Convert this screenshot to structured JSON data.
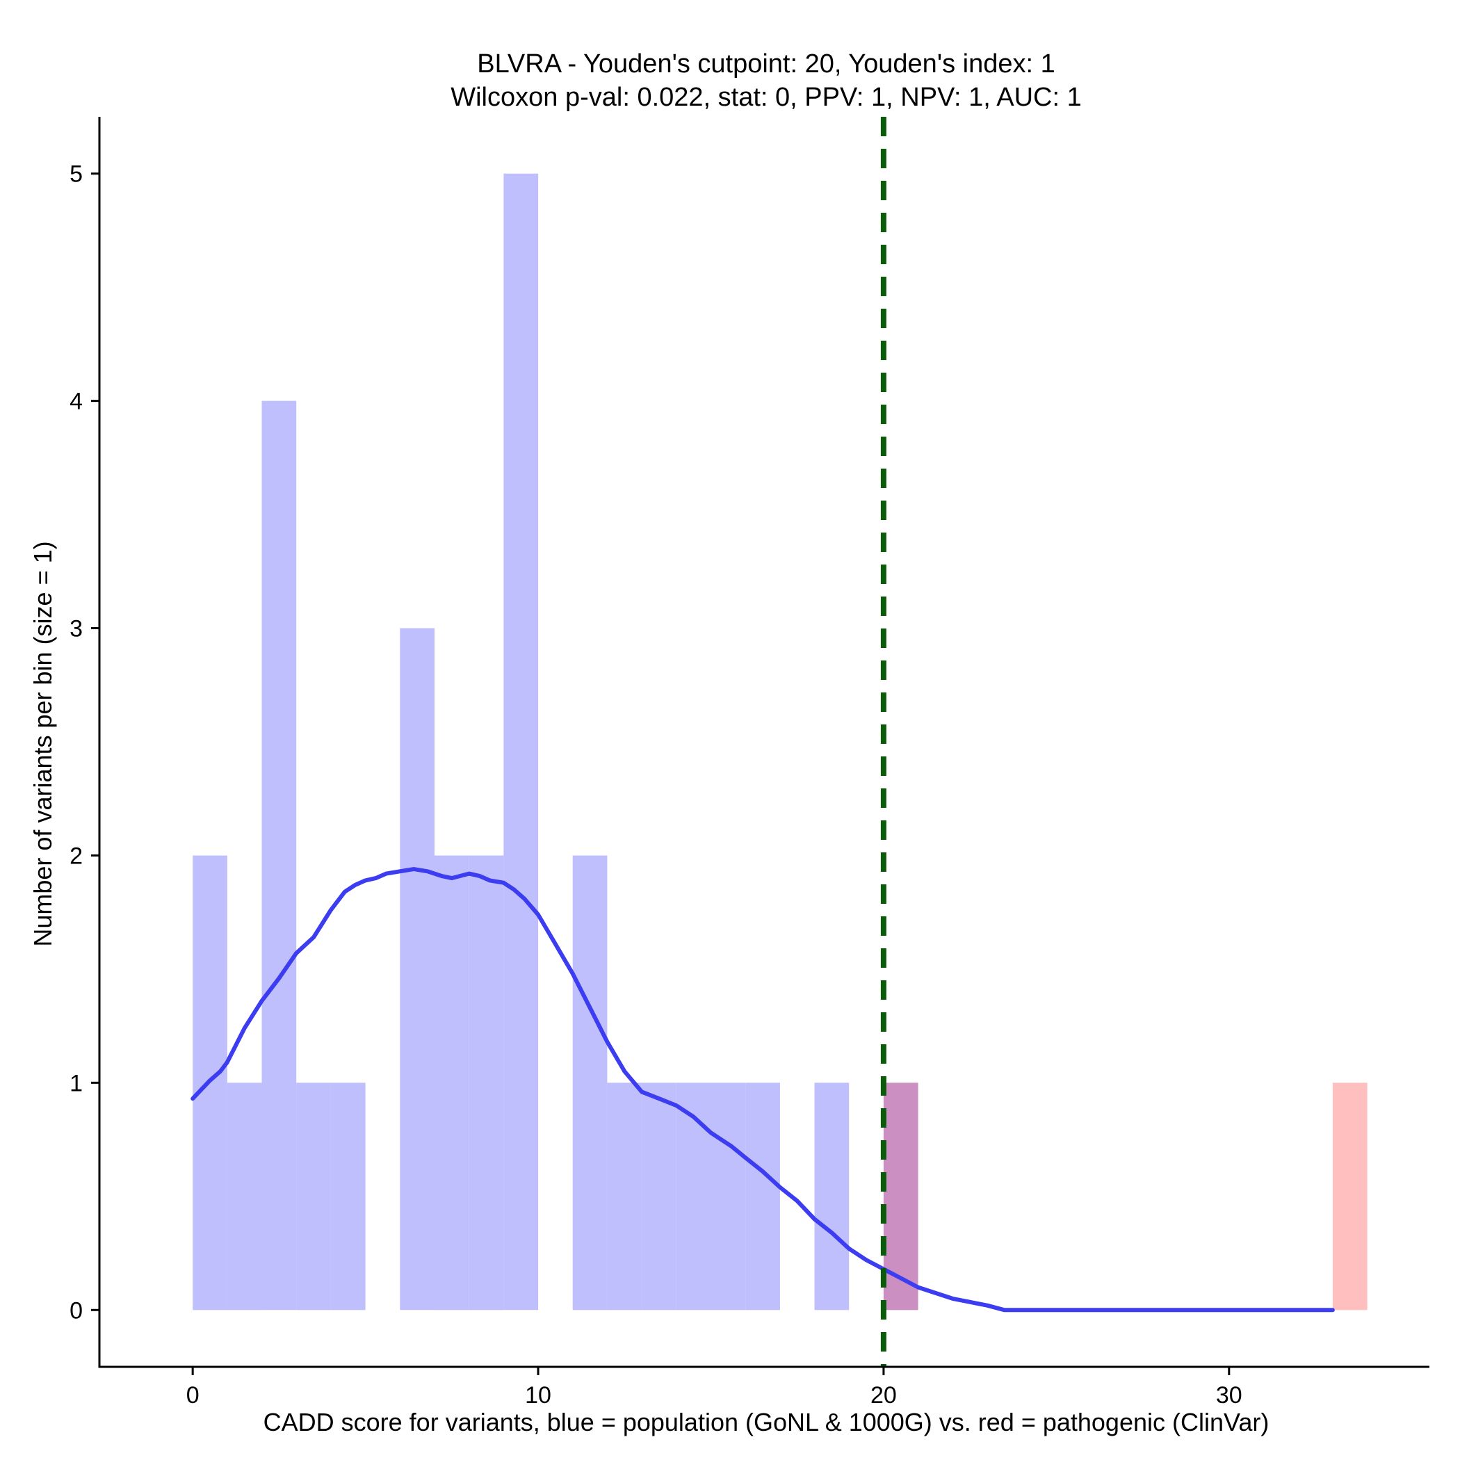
{
  "chart_data": {
    "type": "histogram",
    "title": "BLVRA - Youden's cutpoint: 20, Youden's index: 1",
    "subtitle": "Wilcoxon p-val: 0.022, stat: 0, PPV: 1, NPV: 1, AUC: 1",
    "xlabel": "CADD score for variants, blue = population (GoNL & 1000G) vs. red = pathogenic (ClinVar)",
    "ylabel": "Number of variants per bin (size = 1)",
    "xlim": [
      -2.7,
      35.8
    ],
    "ylim": [
      -0.25,
      5.25
    ],
    "xticks": [
      0,
      10,
      20,
      30
    ],
    "yticks": [
      0,
      1,
      2,
      3,
      4,
      5
    ],
    "bin_width": 1,
    "cutpoint": 20,
    "colors": {
      "population": "#bfbffd",
      "pathogenic": "#ffbfbf",
      "overlap": "#cc8fc2",
      "density": "#3c3cf0",
      "cutpoint": "#0a5c0a"
    },
    "series": [
      {
        "name": "population",
        "bins": [
          {
            "x0": 0,
            "count": 2
          },
          {
            "x0": 1,
            "count": 1
          },
          {
            "x0": 2,
            "count": 4
          },
          {
            "x0": 3,
            "count": 1
          },
          {
            "x0": 4,
            "count": 1
          },
          {
            "x0": 6,
            "count": 3
          },
          {
            "x0": 7,
            "count": 2
          },
          {
            "x0": 8,
            "count": 2
          },
          {
            "x0": 9,
            "count": 5
          },
          {
            "x0": 11,
            "count": 2
          },
          {
            "x0": 12,
            "count": 1
          },
          {
            "x0": 13,
            "count": 1
          },
          {
            "x0": 14,
            "count": 1
          },
          {
            "x0": 15,
            "count": 1
          },
          {
            "x0": 16,
            "count": 1
          },
          {
            "x0": 18,
            "count": 1
          },
          {
            "x0": 20,
            "count": 1
          }
        ]
      },
      {
        "name": "pathogenic",
        "bins": [
          {
            "x0": 20,
            "count": 1
          },
          {
            "x0": 33,
            "count": 1
          }
        ]
      }
    ],
    "density": {
      "name": "population density (scaled)",
      "x": [
        0,
        0.5,
        0.8,
        1.0,
        1.5,
        2.0,
        2.5,
        3.0,
        3.5,
        4.0,
        4.4,
        4.7,
        5.0,
        5.3,
        5.6,
        6.0,
        6.4,
        6.8,
        7.2,
        7.5,
        8.0,
        8.3,
        8.6,
        9.0,
        9.3,
        9.6,
        10.0,
        10.5,
        11.0,
        11.5,
        12.0,
        12.5,
        13.0,
        13.5,
        14.0,
        14.5,
        15.0,
        15.3,
        15.6,
        16.0,
        16.5,
        17.0,
        17.5,
        18.0,
        18.5,
        19.0,
        19.5,
        20.0,
        20.5,
        21.0,
        22.0,
        23.0,
        23.5,
        24.5,
        25.5,
        26.0,
        33.0
      ],
      "y": [
        0.93,
        1.01,
        1.05,
        1.09,
        1.24,
        1.36,
        1.46,
        1.57,
        1.64,
        1.76,
        1.84,
        1.87,
        1.89,
        1.9,
        1.92,
        1.93,
        1.94,
        1.93,
        1.91,
        1.9,
        1.92,
        1.91,
        1.89,
        1.88,
        1.85,
        1.81,
        1.74,
        1.61,
        1.48,
        1.33,
        1.18,
        1.05,
        0.96,
        0.93,
        0.9,
        0.85,
        0.78,
        0.75,
        0.72,
        0.67,
        0.61,
        0.54,
        0.48,
        0.4,
        0.34,
        0.27,
        0.22,
        0.18,
        0.14,
        0.1,
        0.05,
        0.02,
        0.0,
        0.0,
        0.0,
        0.0,
        0.0
      ]
    }
  }
}
